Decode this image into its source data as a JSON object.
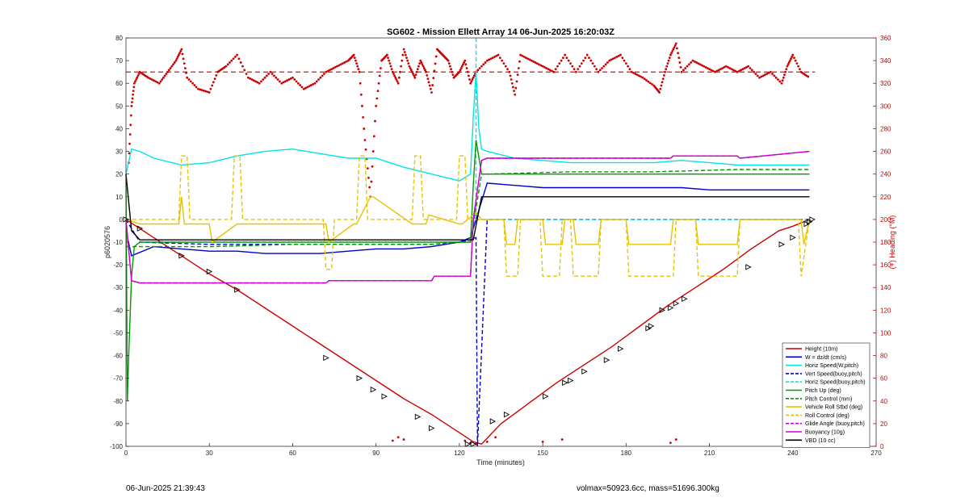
{
  "chart_data": {
    "type": "line",
    "title": "SG602 - Mission Ellett Array 14 06-Jun-2025 16:20:03Z",
    "xlabel": "Time (minutes)",
    "ylabel_left": "p6020576",
    "ylabel_right": "(+) Heading (°M)",
    "xlim": [
      0,
      270
    ],
    "ylim_left": [
      -100,
      80
    ],
    "ylim_right": [
      0,
      360
    ],
    "x_ticks": [
      "0",
      "30",
      "60",
      "90",
      "120",
      "150",
      "180",
      "210",
      "240",
      "270"
    ],
    "y_ticks_left": [
      "80",
      "70",
      "60",
      "50",
      "40",
      "30",
      "20",
      "10",
      "0",
      "-10",
      "-20",
      "-30",
      "-40",
      "-50",
      "-60",
      "-70",
      "-80",
      "-90",
      "-100"
    ],
    "y_ticks_right": [
      "360",
      "340",
      "320",
      "300",
      "280",
      "260",
      "240",
      "220",
      "200",
      "180",
      "160",
      "140",
      "120",
      "100",
      "80",
      "60",
      "40",
      "20",
      "0"
    ],
    "grid": false,
    "legend_position": "bottom-right",
    "legend": [
      {
        "label": "Height (10m)",
        "color": "#cc0000",
        "dash": false
      },
      {
        "label": "W = dz/dt (cm/s)",
        "color": "#0000cc",
        "dash": false
      },
      {
        "label": "Horiz Speed(W,pitch)",
        "color": "#00e5e5",
        "dash": false
      },
      {
        "label": "Vert Speed(buoy,pitch)",
        "color": "#0000cc",
        "dash": true
      },
      {
        "label": "Horiz Speed(buoy,pitch)",
        "color": "#00e5e5",
        "dash": true
      },
      {
        "label": "Pitch Up (deg)",
        "color": "#009900",
        "dash": false
      },
      {
        "label": "Pitch Control (mm)",
        "color": "#009900",
        "dash": true
      },
      {
        "label": "Vehicle Roll Stbd (deg)",
        "color": "#e6c300",
        "dash": false
      },
      {
        "label": "Roll Control (deg)",
        "color": "#e6c300",
        "dash": true
      },
      {
        "label": "Glide Angle (buoy,pitch)",
        "color": "#cc00cc",
        "dash": true
      },
      {
        "label": "Buoyancy (10g)",
        "color": "#cc00cc",
        "dash": false
      },
      {
        "label": "VBD (10 cc)",
        "color": "#000000",
        "dash": false
      }
    ],
    "series": [
      {
        "name": "Height (10m)",
        "axis": "left",
        "x": [
          0,
          10,
          20,
          30,
          40,
          50,
          60,
          70,
          80,
          90,
          100,
          110,
          120,
          125,
          128,
          135,
          145,
          155,
          165,
          175,
          185,
          195,
          205,
          215,
          225,
          235,
          240,
          246
        ],
        "y": [
          0,
          -8,
          -16,
          -24,
          -31,
          -39,
          -47,
          -55,
          -63,
          -71,
          -79,
          -86,
          -94,
          -98,
          -99,
          -90,
          -81,
          -72,
          -64,
          -56,
          -47,
          -38,
          -30,
          -22,
          -13,
          -5,
          -3,
          0
        ]
      },
      {
        "name": "W = dz/dt (cm/s)",
        "axis": "left",
        "x": [
          0,
          2,
          10,
          20,
          30,
          40,
          50,
          60,
          70,
          80,
          90,
          100,
          110,
          120,
          124,
          128,
          130,
          140,
          150,
          160,
          170,
          180,
          190,
          200,
          210,
          220,
          230,
          240,
          246
        ],
        "y": [
          -5,
          -16,
          -12,
          -13,
          -14,
          -14,
          -15,
          -15,
          -15,
          -14,
          -13,
          -13,
          -12,
          -10,
          -8,
          8,
          16,
          15,
          14,
          14,
          14,
          14,
          14,
          14,
          13,
          13,
          13,
          13,
          13
        ]
      },
      {
        "name": "Horiz Speed(W,pitch)",
        "axis": "left",
        "x": [
          0,
          2,
          5,
          10,
          20,
          30,
          40,
          50,
          60,
          70,
          80,
          90,
          100,
          110,
          120,
          124,
          125,
          126,
          127,
          128,
          130,
          140,
          150,
          160,
          170,
          180,
          190,
          200,
          210,
          220,
          230,
          240,
          246
        ],
        "y": [
          20,
          31,
          30,
          27,
          24,
          25,
          28,
          30,
          31,
          29,
          27,
          27,
          23,
          20,
          17,
          20,
          45,
          65,
          40,
          31,
          30,
          27,
          26,
          25,
          25,
          25,
          25,
          26,
          25,
          24,
          24,
          24,
          24
        ]
      },
      {
        "name": "Vert Speed(buoy,pitch)",
        "axis": "left",
        "dash": true,
        "x": [
          0,
          5,
          30,
          60,
          90,
          110,
          120,
          124,
          126,
          126.5,
          130,
          160,
          190,
          220,
          246
        ],
        "y": [
          0,
          -10,
          -11,
          -11,
          -11,
          -11,
          -10,
          -9,
          -8,
          -100,
          0,
          0,
          0,
          0,
          0
        ]
      },
      {
        "name": "Horiz Speed(buoy,pitch)",
        "axis": "left",
        "dash": true,
        "x": [
          126,
          126,
          130,
          160,
          190,
          220,
          246
        ],
        "y": [
          80,
          0,
          0,
          0,
          0,
          0,
          0
        ]
      },
      {
        "name": "Pitch Up (deg)",
        "axis": "left",
        "x": [
          0,
          0.5,
          1,
          2,
          3,
          5,
          10,
          30,
          60,
          90,
          110,
          115,
          120,
          124,
          125,
          126,
          128,
          130,
          160,
          190,
          220,
          246
        ],
        "y": [
          20,
          -80,
          -60,
          -25,
          -12,
          -10,
          -10,
          -10,
          -10,
          -10,
          -10,
          -10,
          -10,
          -10,
          15,
          35,
          20,
          20,
          20,
          20,
          20,
          20
        ]
      },
      {
        "name": "Pitch Control (mm)",
        "axis": "left",
        "dash": true,
        "x": [
          0,
          5,
          30,
          60,
          90,
          110,
          120,
          124,
          128,
          130,
          160,
          190,
          220,
          246
        ],
        "y": [
          -12,
          -12,
          -12,
          -11,
          -11,
          -11,
          -10,
          -10,
          20,
          20,
          21,
          21,
          22,
          22
        ]
      },
      {
        "name": "Vehicle Roll Stbd (deg)",
        "axis": "left",
        "x": [
          0,
          5,
          19,
          20,
          21,
          30,
          31,
          40,
          41,
          72,
          73,
          82,
          83,
          88,
          89,
          103,
          104,
          108,
          109,
          120,
          121,
          126,
          128,
          132,
          136,
          137,
          140,
          141,
          150,
          151,
          157,
          158,
          161,
          162,
          170,
          171,
          180,
          181,
          196,
          197,
          205,
          206,
          220,
          221,
          243,
          244,
          246
        ],
        "y": [
          0,
          -2,
          -2,
          10,
          -2,
          -2,
          -10,
          -2,
          -2,
          -2,
          -10,
          -2,
          -2,
          10,
          10,
          -2,
          -2,
          -2,
          2,
          -2,
          -2,
          3,
          0,
          0,
          0,
          -11,
          -11,
          0,
          0,
          -11,
          -11,
          0,
          0,
          -11,
          -11,
          0,
          0,
          -11,
          -11,
          0,
          0,
          -11,
          -11,
          0,
          0,
          -11,
          0
        ]
      },
      {
        "name": "Roll Control (deg)",
        "axis": "left",
        "dash": true,
        "x": [
          0,
          5,
          19,
          20,
          22,
          23,
          38,
          39,
          41,
          42,
          71,
          72,
          74,
          75,
          83,
          84,
          86,
          87,
          103,
          104,
          106,
          107,
          119,
          120,
          122,
          123,
          128,
          130,
          136,
          137,
          141,
          142,
          149,
          150,
          156,
          157,
          160,
          161,
          170,
          171,
          180,
          181,
          197,
          198,
          205,
          206,
          220,
          221,
          242,
          243,
          246
        ],
        "y": [
          0,
          0,
          0,
          28,
          28,
          0,
          0,
          28,
          28,
          0,
          0,
          -22,
          -22,
          0,
          0,
          28,
          28,
          0,
          0,
          28,
          28,
          0,
          0,
          28,
          28,
          0,
          0,
          0,
          0,
          -25,
          -25,
          0,
          0,
          -25,
          -25,
          0,
          0,
          -25,
          -25,
          0,
          0,
          -25,
          -25,
          0,
          0,
          -25,
          -25,
          0,
          0,
          -25,
          0
        ]
      },
      {
        "name": "Glide Angle (buoy,pitch)",
        "axis": "left",
        "dash": true,
        "x": [
          0,
          2,
          5,
          30,
          60,
          72,
          73,
          110,
          111,
          124,
          125,
          128,
          130,
          160,
          196,
          197,
          220,
          221,
          246
        ],
        "y": [
          0,
          -27,
          -28,
          -28,
          -28,
          -28,
          -27,
          -27,
          -25,
          -25,
          0,
          26,
          27,
          27,
          27,
          28,
          28,
          27,
          30
        ]
      },
      {
        "name": "Buoyancy (10g)",
        "axis": "left",
        "x": [
          0,
          2,
          5,
          30,
          60,
          72,
          73,
          110,
          111,
          124,
          125,
          128,
          130,
          160,
          196,
          197,
          220,
          221,
          246
        ],
        "y": [
          0,
          -27,
          -28,
          -28,
          -28,
          -28,
          -27,
          -27,
          -25,
          -25,
          0,
          26,
          27,
          27,
          27,
          28,
          28,
          27,
          30
        ]
      },
      {
        "name": "VBD (10 cc)",
        "axis": "left",
        "x": [
          0,
          2,
          5,
          30,
          60,
          90,
          110,
          120,
          125,
          128,
          130,
          160,
          190,
          220,
          246
        ],
        "y": [
          20,
          -5,
          -9,
          -9,
          -9,
          -9,
          -9,
          -9,
          -9,
          10,
          10,
          10,
          10,
          10,
          10
        ]
      }
    ],
    "heading_points": [
      [
        1,
        250
      ],
      [
        2,
        300
      ],
      [
        3,
        320
      ],
      [
        5,
        330
      ],
      [
        8,
        325
      ],
      [
        12,
        320
      ],
      [
        15,
        330
      ],
      [
        18,
        340
      ],
      [
        20,
        350
      ],
      [
        22,
        325
      ],
      [
        26,
        315
      ],
      [
        30,
        312
      ],
      [
        33,
        330
      ],
      [
        36,
        335
      ],
      [
        40,
        345
      ],
      [
        44,
        325
      ],
      [
        48,
        320
      ],
      [
        52,
        330
      ],
      [
        56,
        320
      ],
      [
        60,
        325
      ],
      [
        64,
        315
      ],
      [
        68,
        320
      ],
      [
        72,
        330
      ],
      [
        76,
        335
      ],
      [
        80,
        340
      ],
      [
        82,
        345
      ],
      [
        84,
        330
      ],
      [
        86,
        270
      ],
      [
        88,
        220
      ],
      [
        90,
        300
      ],
      [
        92,
        340
      ],
      [
        94,
        345
      ],
      [
        96,
        330
      ],
      [
        98,
        320
      ],
      [
        100,
        350
      ],
      [
        102,
        335
      ],
      [
        104,
        325
      ],
      [
        106,
        340
      ],
      [
        108,
        330
      ],
      [
        110,
        312
      ],
      [
        112,
        350
      ],
      [
        114,
        345
      ],
      [
        116,
        340
      ],
      [
        118,
        325
      ],
      [
        120,
        330
      ],
      [
        122,
        340
      ],
      [
        124,
        320
      ],
      [
        126,
        330
      ],
      [
        130,
        340
      ],
      [
        134,
        345
      ],
      [
        138,
        330
      ],
      [
        140,
        310
      ],
      [
        142,
        345
      ],
      [
        146,
        340
      ],
      [
        150,
        335
      ],
      [
        154,
        330
      ],
      [
        158,
        345
      ],
      [
        162,
        330
      ],
      [
        166,
        345
      ],
      [
        170,
        330
      ],
      [
        174,
        340
      ],
      [
        178,
        345
      ],
      [
        182,
        330
      ],
      [
        186,
        325
      ],
      [
        190,
        318
      ],
      [
        192,
        312
      ],
      [
        194,
        330
      ],
      [
        196,
        345
      ],
      [
        198,
        355
      ],
      [
        200,
        330
      ],
      [
        204,
        340
      ],
      [
        208,
        335
      ],
      [
        212,
        330
      ],
      [
        216,
        335
      ],
      [
        220,
        330
      ],
      [
        224,
        335
      ],
      [
        228,
        325
      ],
      [
        232,
        330
      ],
      [
        236,
        320
      ],
      [
        238,
        335
      ],
      [
        240,
        345
      ],
      [
        243,
        330
      ],
      [
        246,
        325
      ],
      [
        96,
        5
      ],
      [
        98,
        8
      ],
      [
        100,
        6
      ],
      [
        122,
        5
      ],
      [
        124,
        3
      ],
      [
        126,
        2
      ],
      [
        130,
        4
      ],
      [
        133,
        8
      ],
      [
        150,
        4
      ],
      [
        157,
        6
      ],
      [
        196,
        3
      ],
      [
        198,
        6
      ],
      [
        238,
        4
      ]
    ],
    "heading_mean": 330,
    "markers": [
      [
        0,
        0
      ],
      [
        5,
        -4
      ],
      [
        20,
        -16
      ],
      [
        30,
        -23
      ],
      [
        40,
        -31
      ],
      [
        72,
        -61
      ],
      [
        84,
        -70
      ],
      [
        89,
        -75
      ],
      [
        93,
        -78
      ],
      [
        105,
        -87
      ],
      [
        110,
        -92
      ],
      [
        123,
        -99
      ],
      [
        125,
        -99
      ],
      [
        132,
        -89
      ],
      [
        137,
        -86
      ],
      [
        151,
        -78
      ],
      [
        158,
        -72
      ],
      [
        160,
        -71
      ],
      [
        165,
        -67
      ],
      [
        173,
        -62
      ],
      [
        178,
        -57
      ],
      [
        188,
        -48
      ],
      [
        189,
        -47
      ],
      [
        193,
        -40
      ],
      [
        196,
        -39
      ],
      [
        198,
        -37
      ],
      [
        201,
        -35
      ],
      [
        224,
        -21
      ],
      [
        236,
        -11
      ],
      [
        240,
        -8
      ],
      [
        245,
        -2
      ],
      [
        246,
        -1
      ],
      [
        247,
        0
      ]
    ],
    "footer_left": "06-Jun-2025 21:39:43",
    "footer_right": "volmax=50923.6cc, mass=51696.300kg"
  }
}
